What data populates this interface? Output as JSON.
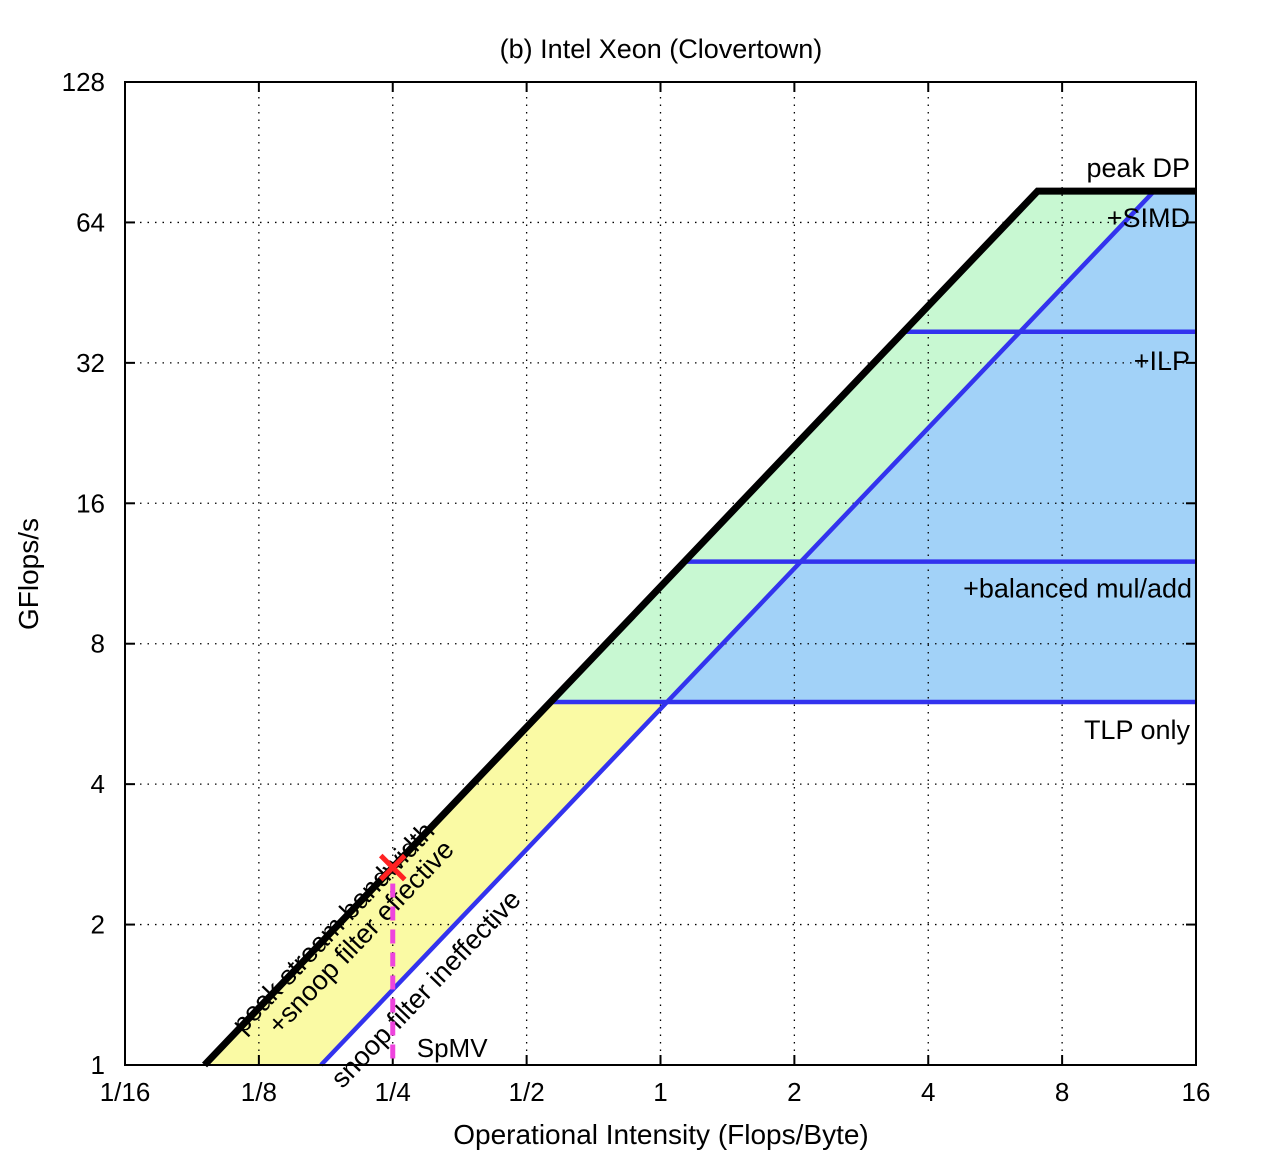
{
  "chart_data": {
    "type": "line",
    "title": "(b) Intel Xeon (Clovertown)",
    "xlabel": "Operational Intensity (Flops/Byte)",
    "ylabel": "GFlops/s",
    "xscale": "log2",
    "yscale": "log2",
    "xlim": [
      0.0625,
      16
    ],
    "ylim": [
      1,
      128
    ],
    "xticks": [
      {
        "value": 0.0625,
        "label": "1/16"
      },
      {
        "value": 0.125,
        "label": "1/8"
      },
      {
        "value": 0.25,
        "label": "1/4"
      },
      {
        "value": 0.5,
        "label": "1/2"
      },
      {
        "value": 1,
        "label": "1"
      },
      {
        "value": 2,
        "label": "2"
      },
      {
        "value": 4,
        "label": "4"
      },
      {
        "value": 8,
        "label": "8"
      },
      {
        "value": 16,
        "label": "16"
      }
    ],
    "yticks": [
      {
        "value": 1,
        "label": "1"
      },
      {
        "value": 2,
        "label": "2"
      },
      {
        "value": 4,
        "label": "4"
      },
      {
        "value": 8,
        "label": "8"
      },
      {
        "value": 16,
        "label": "16"
      },
      {
        "value": 32,
        "label": "32"
      },
      {
        "value": 64,
        "label": "64"
      },
      {
        "value": 128,
        "label": "128"
      }
    ],
    "grid": true,
    "ceilings": [
      {
        "label": "peak DP",
        "gflops": 74.7
      },
      {
        "label": "+SIMD",
        "gflops": null
      },
      {
        "label": "+ILP",
        "gflops": 37.3
      },
      {
        "label": "+balanced mul/add",
        "gflops": 12.0
      },
      {
        "label": "TLP only",
        "gflops": 6.0
      }
    ],
    "bandwidth_roofs": [
      {
        "label": "peak stream bandwidth",
        "gbytes_per_s": 10.6
      },
      {
        "label": "+snoop filter effective",
        "gbytes_per_s": null
      },
      {
        "label": "snoop filter ineffective",
        "gbytes_per_s": 5.8
      }
    ],
    "kernels": [
      {
        "label": "SpMV",
        "oi": 0.25,
        "gflops": 2.65
      }
    ],
    "colors": {
      "roof": "#000000",
      "ceiling": "#3333ee",
      "marker": "#ff2222",
      "kernel_line": "#ee44dd",
      "fill_yellow": "#fafaa4",
      "fill_green": "#c8f8d2",
      "fill_blue": "#a2d2f8"
    }
  }
}
